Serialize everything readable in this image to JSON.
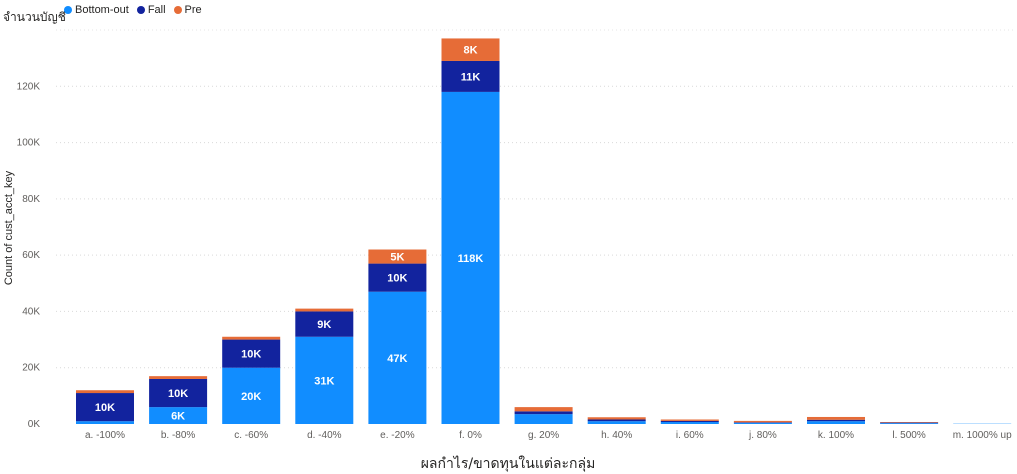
{
  "header": {
    "title": "จำนวนบัญชี"
  },
  "chart_data": {
    "type": "bar",
    "stacked": true,
    "categories": [
      "a. -100%",
      "b. -80%",
      "c. -60%",
      "d. -40%",
      "e. -20%",
      "f. 0%",
      "g. 20%",
      "h. 40%",
      "i. 60%",
      "j. 80%",
      "k. 100%",
      "l. 500%",
      "m. 1000% up"
    ],
    "series": [
      {
        "name": "Bottom-out",
        "color": "#118DFF",
        "values": [
          1000,
          6000,
          20000,
          31000,
          47000,
          118000,
          3500,
          1000,
          700,
          400,
          1000,
          300,
          100
        ]
      },
      {
        "name": "Fall",
        "color": "#12239E",
        "values": [
          10000,
          10000,
          10000,
          9000,
          10000,
          11000,
          1000,
          600,
          400,
          200,
          500,
          200,
          50
        ]
      },
      {
        "name": "Pre",
        "color": "#E66C37",
        "values": [
          1000,
          1000,
          1000,
          1000,
          5000,
          8000,
          1500,
          800,
          500,
          500,
          1000,
          200,
          50
        ]
      }
    ],
    "data_labels": [
      [
        "",
        "6K",
        "20K",
        "31K",
        "47K",
        "118K",
        "",
        "",
        "",
        "",
        "",
        "",
        ""
      ],
      [
        "10K",
        "10K",
        "10K",
        "9K",
        "10K",
        "11K",
        "",
        "",
        "",
        "",
        "",
        "",
        ""
      ],
      [
        "",
        "",
        "",
        "",
        "5K",
        "8K",
        "",
        "",
        "",
        "",
        "",
        "",
        ""
      ]
    ],
    "ylim": [
      0,
      140000
    ],
    "yticks": [
      0,
      20000,
      40000,
      60000,
      80000,
      100000,
      120000
    ],
    "ytick_labels": [
      "0K",
      "20K",
      "40K",
      "60K",
      "80K",
      "100K",
      "120K"
    ],
    "xlabel": "ผลกำไร/ขาดทุนในแต่ละกลุ่ม",
    "ylabel": "Count of cust_acct_key",
    "grid": true,
    "legend_position": "top-left"
  }
}
